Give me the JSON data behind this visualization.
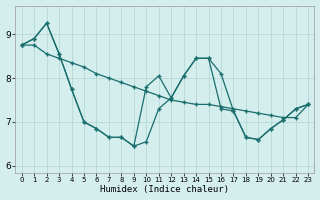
{
  "xlabel": "Humidex (Indice chaleur)",
  "background_color": "#d4eeee",
  "grid_color": "#b8d8d8",
  "line_color": "#1a6e6e",
  "xlim": [
    -0.5,
    23.5
  ],
  "ylim": [
    5.85,
    9.65
  ],
  "yticks": [
    6,
    7,
    8,
    9
  ],
  "xticks": [
    0,
    1,
    2,
    3,
    4,
    5,
    6,
    7,
    8,
    9,
    10,
    11,
    12,
    13,
    14,
    15,
    16,
    17,
    18,
    19,
    20,
    21,
    22,
    23
  ],
  "series": [
    [
      8.75,
      8.9,
      9.25,
      8.55,
      7.75,
      7.0,
      6.85,
      6.65,
      6.65,
      6.45,
      6.55,
      7.3,
      7.55,
      8.05,
      8.45,
      8.45,
      7.3,
      7.25,
      6.65,
      6.6,
      6.85,
      7.05,
      7.3,
      7.4
    ],
    [
      8.75,
      8.9,
      9.25,
      8.55,
      7.75,
      7.0,
      6.85,
      6.65,
      6.65,
      6.45,
      7.8,
      8.05,
      7.55,
      8.05,
      8.45,
      8.45,
      8.1,
      7.25,
      6.65,
      6.6,
      6.85,
      7.05,
      7.3,
      7.4
    ],
    [
      8.75,
      8.75,
      8.55,
      8.45,
      8.35,
      8.25,
      8.1,
      8.0,
      7.9,
      7.8,
      7.7,
      7.6,
      7.5,
      7.45,
      7.4,
      7.4,
      7.35,
      7.3,
      7.25,
      7.2,
      7.15,
      7.1,
      7.1,
      7.4
    ]
  ]
}
